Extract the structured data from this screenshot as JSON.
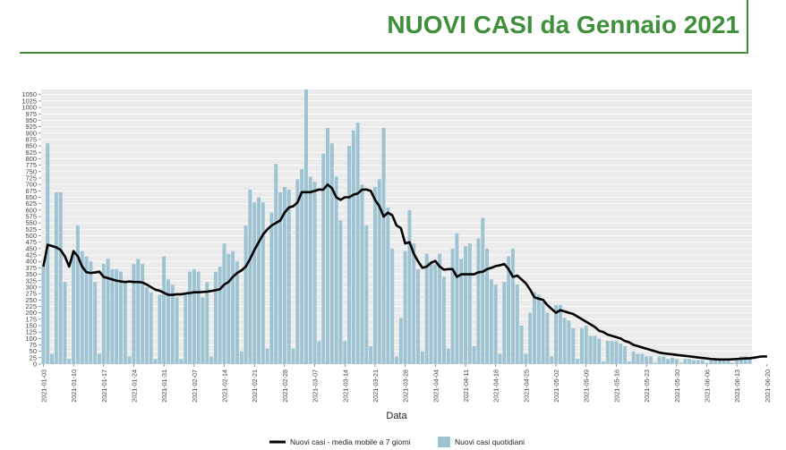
{
  "header": {
    "title": "NUOVI CASI da Gennaio 2021"
  },
  "colors": {
    "title": "#3f8f3b",
    "bar": "#9ec3d2",
    "line": "#000000",
    "panel": "#ebebeb",
    "grid": "#ffffff"
  },
  "chart_data": {
    "type": "bar",
    "xlabel": "Data",
    "ylabel": "",
    "ylim": [
      0,
      1070
    ],
    "yticks": [
      0,
      25,
      50,
      75,
      100,
      125,
      150,
      175,
      200,
      225,
      250,
      275,
      300,
      325,
      350,
      375,
      400,
      425,
      450,
      475,
      500,
      525,
      550,
      575,
      600,
      625,
      650,
      675,
      700,
      725,
      750,
      775,
      800,
      825,
      850,
      875,
      900,
      925,
      950,
      975,
      1000,
      1025,
      1050
    ],
    "xtick_labels": [
      "2021-01-03",
      "2021-01-10",
      "2021-01-17",
      "2021-01-24",
      "2021-01-31",
      "2021-02-07",
      "2021-02-14",
      "2021-02-21",
      "2021-02-28",
      "2021-03-07",
      "2021-03-14",
      "2021-03-21",
      "2021-03-28",
      "2021-04-04",
      "2021-04-11",
      "2021-04-18",
      "2021-04-25",
      "2021-05-02",
      "2021-05-09",
      "2021-05-16",
      "2021-05-23",
      "2021-05-30",
      "2021-06-06",
      "2021-06-13",
      "2021-06-20",
      "2021-06-27",
      "2021-07-04"
    ],
    "legend": {
      "position": "bottom",
      "entries": [
        "Nuovi casi - media mobile a 7 giorni",
        "Nuovi casi quotidiani"
      ]
    },
    "grid": true,
    "series": [
      {
        "name": "Nuovi casi quotidiani",
        "type": "bar",
        "values": [
          380,
          860,
          40,
          670,
          670,
          320,
          20,
          440,
          540,
          440,
          420,
          400,
          320,
          40,
          390,
          410,
          370,
          370,
          360,
          320,
          30,
          390,
          410,
          390,
          300,
          280,
          20,
          270,
          420,
          330,
          310,
          260,
          20,
          270,
          360,
          370,
          360,
          260,
          320,
          30,
          360,
          380,
          470,
          430,
          440,
          400,
          50,
          540,
          680,
          630,
          650,
          630,
          60,
          590,
          780,
          670,
          690,
          680,
          60,
          720,
          760,
          1070,
          730,
          710,
          90,
          820,
          920,
          860,
          730,
          560,
          90,
          850,
          910,
          940,
          700,
          540,
          70,
          690,
          720,
          920,
          610,
          450,
          30,
          180,
          440,
          600,
          470,
          370,
          50,
          430,
          400,
          390,
          430,
          340,
          60,
          450,
          510,
          410,
          460,
          470,
          70,
          490,
          570,
          450,
          330,
          310,
          40,
          320,
          420,
          450,
          310,
          150,
          40,
          200,
          280,
          270,
          240,
          200,
          30,
          230,
          230,
          180,
          170,
          140,
          20,
          140,
          150,
          110,
          110,
          100,
          10,
          90,
          90,
          90,
          80,
          70,
          10,
          50,
          40,
          40,
          30,
          30,
          5,
          30,
          30,
          20,
          25,
          20,
          5,
          20,
          20,
          15,
          15,
          15,
          5,
          15,
          20,
          15,
          15,
          15,
          5,
          20,
          30,
          30,
          25
        ]
      },
      {
        "name": "Nuovi casi - media mobile a 7 giorni",
        "type": "line",
        "values": [
          380,
          465,
          460,
          455,
          445,
          420,
          380,
          440,
          420,
          380,
          358,
          355,
          357,
          360,
          340,
          335,
          330,
          325,
          322,
          320,
          322,
          320,
          320,
          318,
          310,
          300,
          290,
          286,
          278,
          270,
          270,
          272,
          272,
          275,
          277,
          280,
          280,
          281,
          282,
          285,
          288,
          292,
          310,
          320,
          340,
          355,
          365,
          380,
          410,
          445,
          475,
          505,
          525,
          540,
          550,
          560,
          590,
          610,
          615,
          630,
          670,
          670,
          670,
          675,
          680,
          680,
          700,
          685,
          650,
          640,
          650,
          650,
          660,
          665,
          680,
          680,
          675,
          640,
          615,
          575,
          590,
          580,
          540,
          530,
          470,
          475,
          430,
          400,
          375,
          380,
          395,
          402,
          380,
          368,
          370,
          370,
          340,
          350,
          350,
          350,
          350,
          358,
          360,
          370,
          375,
          382,
          385,
          390,
          370,
          340,
          345,
          330,
          315,
          290,
          260,
          255,
          250,
          230,
          215,
          200,
          210,
          205,
          200,
          195,
          185,
          175,
          165,
          155,
          145,
          130,
          125,
          115,
          110,
          105,
          100,
          90,
          85,
          75,
          70,
          65,
          60,
          55,
          50,
          45,
          42,
          40,
          38,
          36,
          34,
          32,
          30,
          28,
          26,
          24,
          22,
          20,
          19,
          18,
          18,
          18,
          19,
          20,
          21,
          22,
          23,
          25,
          28,
          30,
          30
        ]
      }
    ]
  }
}
